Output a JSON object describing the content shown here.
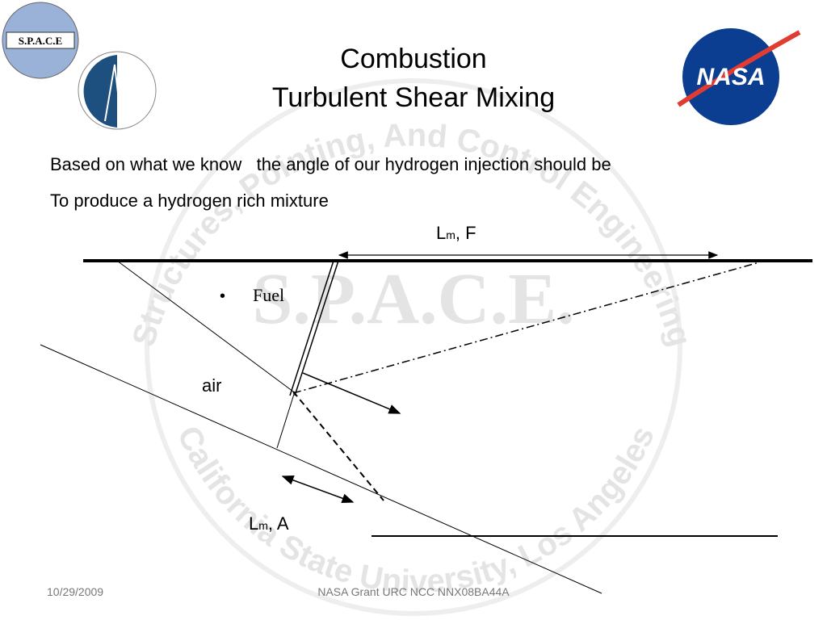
{
  "logos": {
    "space": "S.P.A.C.E",
    "nasa": "NASA"
  },
  "watermark": {
    "center": "S.P.A.C.E.",
    "top_ring": "Structures, Pointing, And Control Engineering",
    "bottom_ring": "California State University, Los Angeles"
  },
  "header": {
    "title_line_1": "Combustion",
    "title_line_2": "Turbulent Shear Mixing"
  },
  "body": {
    "line_1": "Based on what we know   the angle of our hydrogen injection should be",
    "line_2": "To produce a hydrogen rich mixture"
  },
  "diagram": {
    "fuel_length": {
      "main": "L",
      "sub": "m",
      "rest": ", F"
    },
    "bullet": "Fuel",
    "air_label": "air",
    "air_length": {
      "main": "L",
      "sub": "m",
      "rest": ", A"
    }
  },
  "footer": {
    "date": "10/29/2009",
    "grant": "NASA Grant URC NCC NNX08BA44A"
  }
}
